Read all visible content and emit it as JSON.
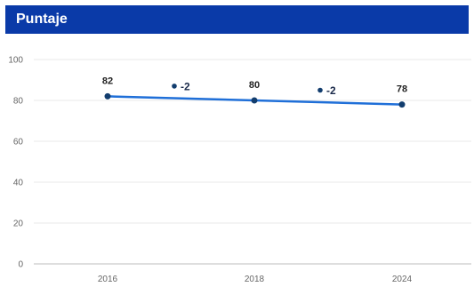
{
  "header": {
    "title": "Puntaje",
    "background": "#0a3aa8"
  },
  "chart_data": {
    "type": "line",
    "title": "Puntaje",
    "xlabel": "",
    "ylabel": "",
    "categories": [
      "2016",
      "2018",
      "2024"
    ],
    "series": [
      {
        "values": [
          82,
          80,
          78
        ],
        "color": "#1f6fd8"
      }
    ],
    "data_labels": [
      "82",
      "80",
      "78"
    ],
    "deltas": [
      {
        "between": [
          "2016",
          "2018"
        ],
        "value": 87,
        "label": "-2"
      },
      {
        "between": [
          "2018",
          "2024"
        ],
        "value": 85,
        "label": "-2"
      }
    ],
    "ylim": [
      0,
      100
    ],
    "yticks": [
      0,
      20,
      40,
      60,
      80,
      100
    ],
    "grid": true,
    "legend": "none"
  }
}
